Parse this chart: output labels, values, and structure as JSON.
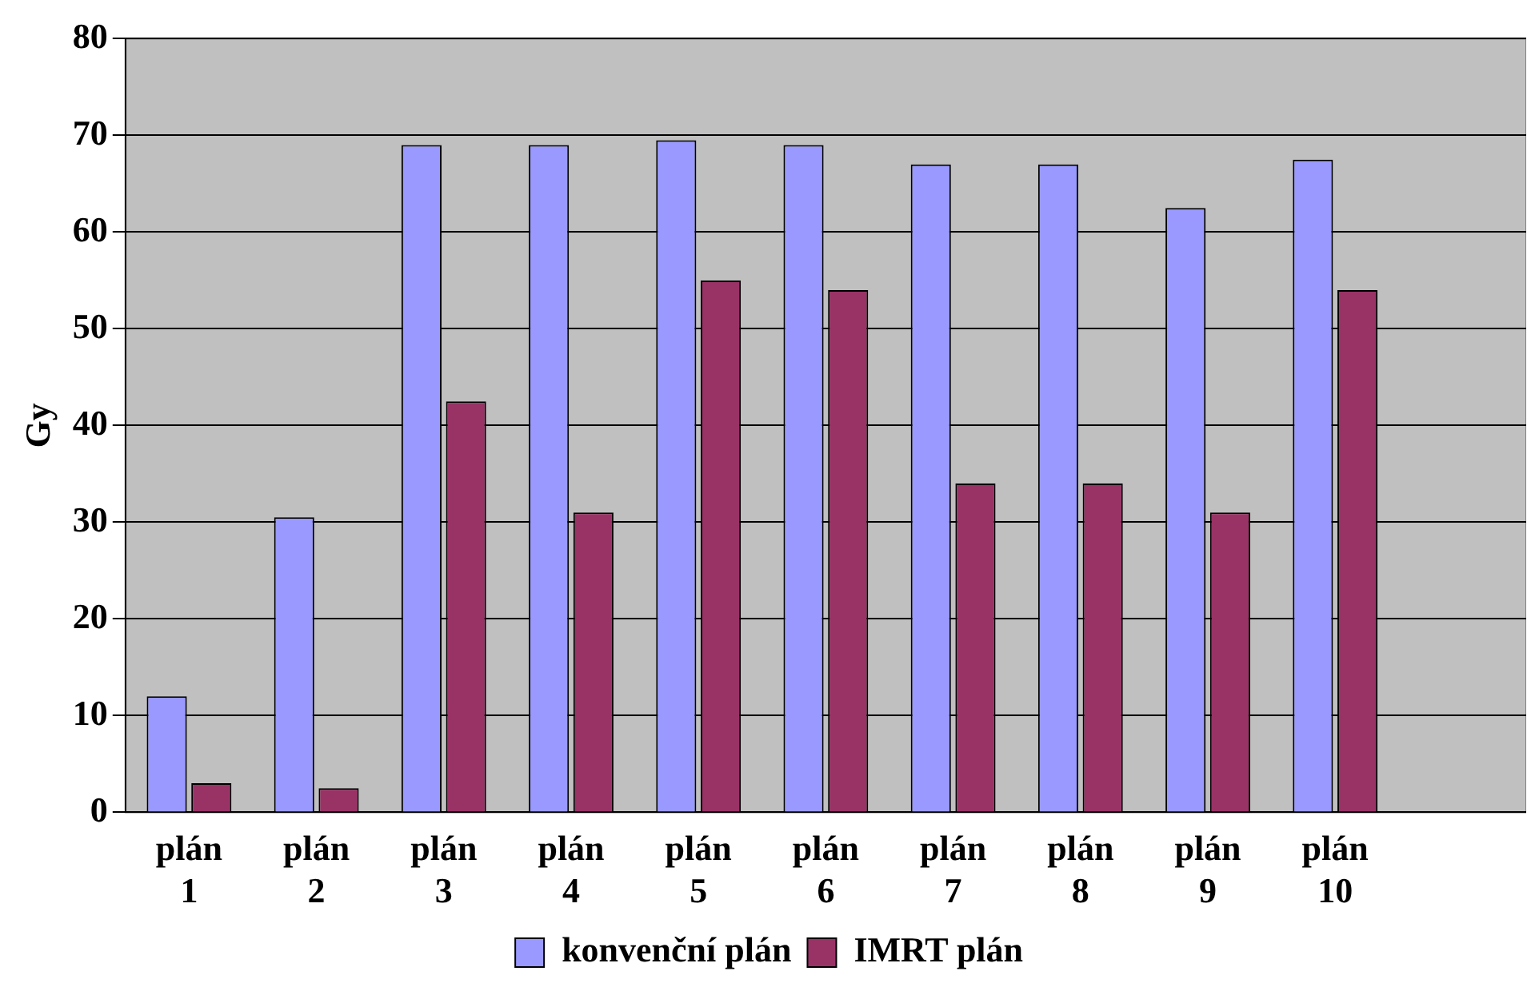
{
  "chart_data": {
    "type": "bar",
    "ylabel": "Gy",
    "categories": [
      "plán 1",
      "plán 2",
      "plán 3",
      "plán 4",
      "plán 5",
      "plán 6",
      "plán 7",
      "plán 8",
      "plán 9",
      "plán 10",
      null
    ],
    "series": [
      {
        "name": "konvenční plán",
        "color": "#9999ff",
        "values": [
          12,
          30.5,
          69,
          69,
          69.5,
          69,
          67,
          67,
          62.5,
          67.5,
          null
        ]
      },
      {
        "name": "IMRT plán",
        "color": "#993366",
        "values": [
          3,
          2.5,
          42.5,
          31,
          55,
          54,
          34,
          34,
          31,
          54,
          null
        ]
      }
    ],
    "ylim": [
      0,
      80
    ],
    "yticks": [
      0,
      10,
      20,
      30,
      40,
      50,
      60,
      70,
      80
    ],
    "grid": "y",
    "legend": "bottom"
  }
}
